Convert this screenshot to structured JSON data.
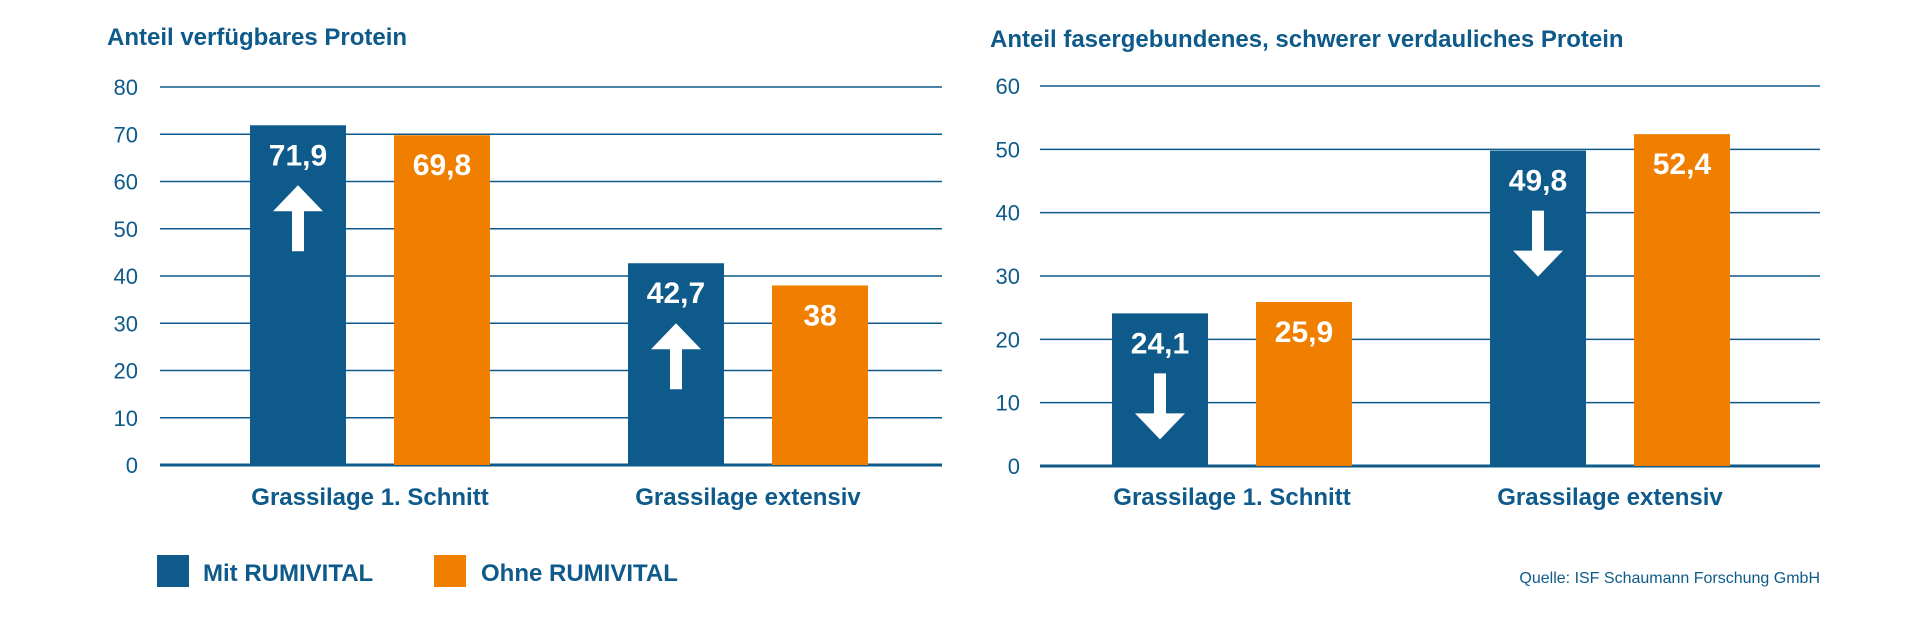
{
  "colors": {
    "mit": "#0e5a8a",
    "ohne": "#f07f00",
    "text": "#0e5a8a",
    "grid": "#0e5a8a"
  },
  "legend": {
    "mit_label": "Mit RUMIVITAL",
    "ohne_label": "Ohne RUMIVITAL"
  },
  "source": "Quelle: ISF Schaumann Forschung GmbH",
  "chart_data": [
    {
      "type": "bar",
      "title": "Anteil verfügbares Protein",
      "categories": [
        "Grassilage 1. Schnitt",
        "Grassilage extensiv"
      ],
      "series": [
        {
          "name": "Mit RUMIVITAL",
          "values": [
            71.9,
            42.7
          ],
          "labels": [
            "71,9",
            "42,7"
          ],
          "arrow": "up"
        },
        {
          "name": "Ohne RUMIVITAL",
          "values": [
            69.8,
            38
          ],
          "labels": [
            "69,8",
            "38"
          ]
        }
      ],
      "ylim": [
        0,
        80
      ],
      "yticks": [
        0,
        10,
        20,
        30,
        40,
        50,
        60,
        70,
        80
      ],
      "grid": true,
      "xlabel": "",
      "ylabel": ""
    },
    {
      "type": "bar",
      "title": "Anteil fasergebundenes, schwerer verdauliches Protein",
      "categories": [
        "Grassilage 1. Schnitt",
        "Grassilage extensiv"
      ],
      "series": [
        {
          "name": "Mit RUMIVITAL",
          "values": [
            24.1,
            49.8
          ],
          "labels": [
            "24,1",
            "49,8"
          ],
          "arrow": "down"
        },
        {
          "name": "Ohne RUMIVITAL",
          "values": [
            25.9,
            52.4
          ],
          "labels": [
            "25,9",
            "52,4"
          ]
        }
      ],
      "ylim": [
        0,
        60
      ],
      "yticks": [
        0,
        10,
        20,
        30,
        40,
        50,
        60
      ],
      "grid": true,
      "xlabel": "",
      "ylabel": ""
    }
  ]
}
